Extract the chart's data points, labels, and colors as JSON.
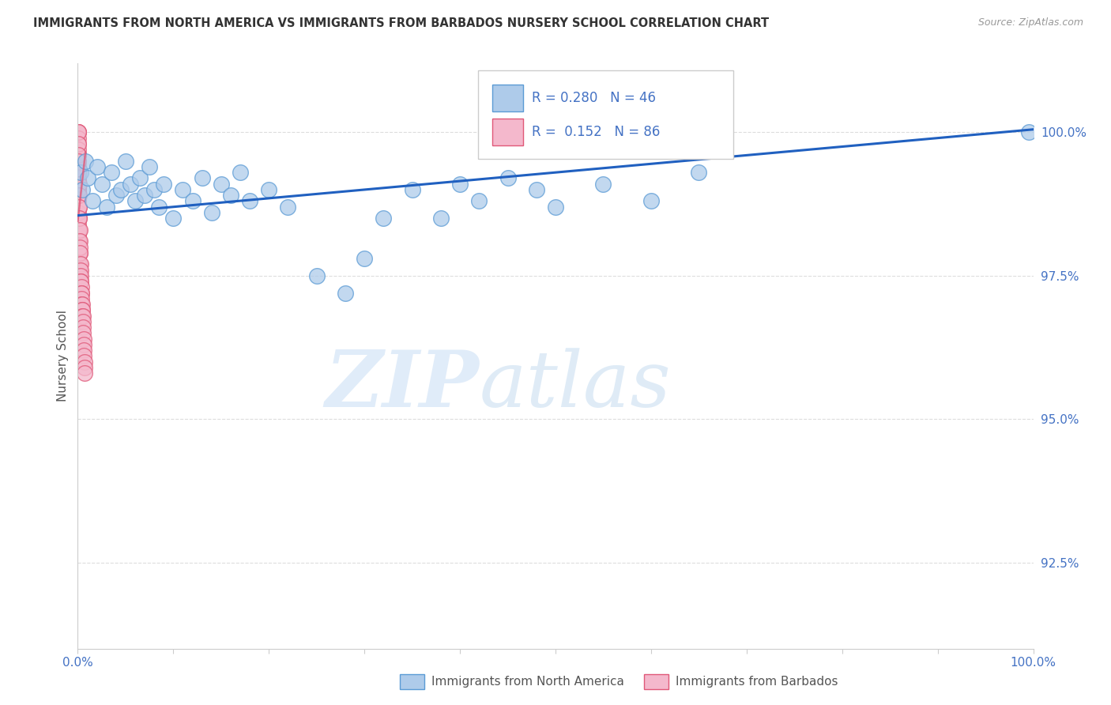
{
  "title": "IMMIGRANTS FROM NORTH AMERICA VS IMMIGRANTS FROM BARBADOS NURSERY SCHOOL CORRELATION CHART",
  "source": "Source: ZipAtlas.com",
  "ylabel": "Nursery School",
  "xlim": [
    0.0,
    100.0
  ],
  "ylim": [
    91.0,
    101.2
  ],
  "yticks": [
    92.5,
    95.0,
    97.5,
    100.0
  ],
  "ytick_labels": [
    "92.5%",
    "95.0%",
    "97.5%",
    "100.0%"
  ],
  "xtick_labels": [
    "0.0%",
    "",
    "",
    "",
    "",
    "",
    "",
    "",
    "",
    "",
    "100.0%"
  ],
  "series_north_america": {
    "label": "Immigrants from North America",
    "color": "#aecbea",
    "edge_color": "#5b9bd5",
    "R": 0.28,
    "N": 46,
    "x": [
      0.3,
      0.5,
      0.8,
      1.0,
      1.5,
      2.0,
      2.5,
      3.0,
      3.5,
      4.0,
      4.5,
      5.0,
      5.5,
      6.0,
      6.5,
      7.0,
      7.5,
      8.0,
      8.5,
      9.0,
      10.0,
      11.0,
      12.0,
      13.0,
      14.0,
      15.0,
      16.0,
      17.0,
      18.0,
      20.0,
      22.0,
      25.0,
      28.0,
      30.0,
      32.0,
      35.0,
      38.0,
      40.0,
      42.0,
      45.0,
      48.0,
      50.0,
      55.0,
      60.0,
      65.0,
      99.5
    ],
    "y": [
      99.3,
      99.0,
      99.5,
      99.2,
      98.8,
      99.4,
      99.1,
      98.7,
      99.3,
      98.9,
      99.0,
      99.5,
      99.1,
      98.8,
      99.2,
      98.9,
      99.4,
      99.0,
      98.7,
      99.1,
      98.5,
      99.0,
      98.8,
      99.2,
      98.6,
      99.1,
      98.9,
      99.3,
      98.8,
      99.0,
      98.7,
      97.5,
      97.2,
      97.8,
      98.5,
      99.0,
      98.5,
      99.1,
      98.8,
      99.2,
      99.0,
      98.7,
      99.1,
      98.8,
      99.3,
      100.0
    ]
  },
  "series_barbados": {
    "label": "Immigrants from Barbados",
    "color": "#f4b8cc",
    "edge_color": "#e05878",
    "R": 0.152,
    "N": 86,
    "x": [
      0.02,
      0.02,
      0.02,
      0.02,
      0.02,
      0.02,
      0.02,
      0.02,
      0.02,
      0.02,
      0.02,
      0.02,
      0.02,
      0.02,
      0.02,
      0.02,
      0.02,
      0.02,
      0.02,
      0.02,
      0.02,
      0.02,
      0.02,
      0.02,
      0.02,
      0.04,
      0.04,
      0.04,
      0.04,
      0.04,
      0.04,
      0.04,
      0.06,
      0.06,
      0.06,
      0.06,
      0.06,
      0.08,
      0.08,
      0.08,
      0.08,
      0.1,
      0.1,
      0.1,
      0.1,
      0.12,
      0.12,
      0.12,
      0.14,
      0.14,
      0.14,
      0.16,
      0.16,
      0.18,
      0.18,
      0.2,
      0.2,
      0.22,
      0.22,
      0.24,
      0.24,
      0.26,
      0.28,
      0.3,
      0.3,
      0.32,
      0.34,
      0.36,
      0.38,
      0.4,
      0.42,
      0.44,
      0.46,
      0.48,
      0.5,
      0.52,
      0.54,
      0.56,
      0.58,
      0.6,
      0.62,
      0.64,
      0.66,
      0.68,
      0.7,
      0.72
    ],
    "y": [
      100.0,
      100.0,
      99.9,
      99.8,
      99.7,
      99.6,
      99.5,
      99.4,
      99.3,
      99.2,
      99.1,
      99.0,
      98.9,
      98.8,
      98.7,
      98.5,
      98.3,
      98.1,
      97.9,
      97.7,
      97.5,
      97.3,
      97.1,
      96.9,
      96.7,
      100.0,
      99.8,
      99.6,
      99.3,
      99.0,
      98.7,
      98.4,
      99.5,
      99.2,
      98.9,
      98.5,
      98.1,
      99.3,
      99.0,
      98.6,
      98.2,
      99.1,
      98.7,
      98.3,
      97.9,
      98.9,
      98.5,
      98.1,
      98.7,
      98.3,
      97.9,
      98.5,
      98.1,
      98.3,
      97.9,
      98.1,
      97.7,
      98.0,
      97.6,
      97.9,
      97.5,
      97.7,
      97.6,
      97.5,
      97.4,
      97.4,
      97.3,
      97.2,
      97.2,
      97.1,
      97.0,
      97.0,
      96.9,
      96.9,
      96.8,
      96.8,
      96.7,
      96.6,
      96.5,
      96.4,
      96.3,
      96.2,
      96.1,
      96.0,
      95.9,
      95.8
    ]
  },
  "trend_north_america": {
    "x_start": 0.0,
    "x_end": 100.0,
    "y_start": 98.55,
    "y_end": 100.05,
    "color": "#2060c0",
    "linewidth": 2.2
  },
  "trend_barbados": {
    "x_start": 0.0,
    "x_end": 0.8,
    "y_start": 98.45,
    "y_end": 99.65,
    "color": "#e05878",
    "linewidth": 1.8
  },
  "watermark_zip": "ZIP",
  "watermark_atlas": "atlas",
  "background_color": "#ffffff",
  "title_color": "#333333",
  "axis_color": "#4472c4",
  "grid_color": "#dddddd"
}
